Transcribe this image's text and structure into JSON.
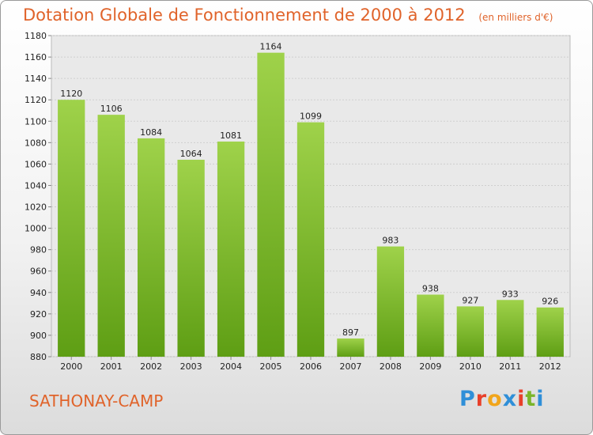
{
  "chart_data": {
    "type": "bar",
    "title": "Dotation Globale de Fonctionnement de 2000 à 2012",
    "subtitle": "(en milliers d'€)",
    "categories": [
      "2000",
      "2001",
      "2002",
      "2003",
      "2004",
      "2005",
      "2006",
      "2007",
      "2008",
      "2009",
      "2010",
      "2011",
      "2012"
    ],
    "values": [
      1120,
      1106,
      1084,
      1064,
      1081,
      1164,
      1099,
      897,
      983,
      938,
      927,
      933,
      926
    ],
    "ylim": [
      880,
      1180
    ],
    "yticks": [
      880,
      900,
      920,
      940,
      960,
      980,
      1000,
      1020,
      1040,
      1060,
      1080,
      1100,
      1120,
      1140,
      1160,
      1180
    ],
    "grid": true,
    "bar_color_top": "#9fd24a",
    "bar_color_bottom": "#5e9e14"
  },
  "footer": {
    "city": "SATHONAY-CAMP",
    "logo": "Proxiti",
    "logo_colors": [
      "#2f8fd8",
      "#e8402a",
      "#f1a51b",
      "#2f8fd8",
      "#e8402a",
      "#7ab52a",
      "#2f8fd8"
    ]
  }
}
